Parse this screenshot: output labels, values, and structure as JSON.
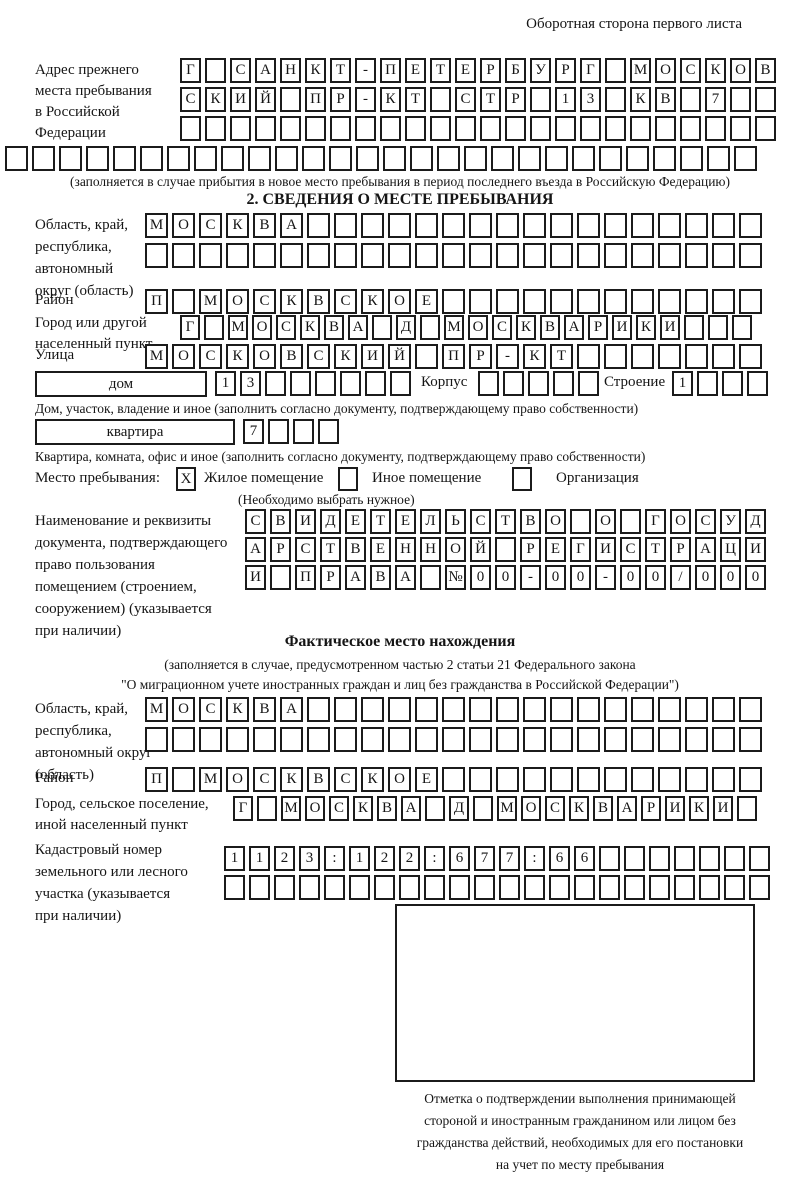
{
  "page": {
    "back_note": "Оборотная сторона первого листа"
  },
  "prev_address": {
    "label_lines": [
      "Адрес прежнего",
      "места пребывания",
      "в Российской",
      "Федерации"
    ],
    "row1": {
      "text": "Г САНКТ-ПЕТЕРБУРГ МОСКОВ",
      "len": 24
    },
    "row2": {
      "text": "СКИЙ ПР-КТ СТР 13 КВ 7",
      "len": 24
    },
    "row3": {
      "text": "",
      "len": 24
    },
    "row4": {
      "text": "",
      "len": 28
    },
    "note": "(заполняется в случае прибытия в новое место пребывания в период последнего въезда в Российскую Федерацию)"
  },
  "section2": {
    "title": "2. СВЕДЕНИЯ О МЕСТЕ ПРЕБЫВАНИЯ",
    "oblast": {
      "label_lines": [
        "Область, край,",
        "республика,",
        "автономный",
        "округ (область)"
      ],
      "row1": {
        "text": "МОСКВА",
        "len": 23
      },
      "row2": {
        "text": "",
        "len": 23
      }
    },
    "rayon": {
      "label": "Район",
      "row": {
        "text": "П МОСКВСКОЕ",
        "len": 23
      }
    },
    "gorod": {
      "label_lines": [
        "Город или другой",
        "населенный пункт"
      ],
      "row": {
        "text": "Г МОСКВА Д МОСКВАРИКИ",
        "len": 24
      }
    },
    "ulitsa": {
      "label": "Улица",
      "row": {
        "text": "МОСКОВСКИЙ ПР-КТ",
        "len": 23
      }
    },
    "dom": {
      "box_label": "дом",
      "house_cells": {
        "text": "13",
        "len": 8
      },
      "korpus_label": "Корпус",
      "korpus_cells": {
        "text": "",
        "len": 5
      },
      "stroenie_label": "Строение",
      "stroenie_cells": {
        "text": "1",
        "len": 4
      },
      "caption": "Дом, участок, владение и иное (заполнить согласно документу, подтверждающему право собственности)"
    },
    "kvartira": {
      "box_label": "квартира",
      "cells": {
        "text": "7",
        "len": 4
      },
      "caption": "Квартира, комната, офис и иное (заполнить согласно документу, подтверждающему право собственности)"
    },
    "mesto": {
      "label": "Место пребывания:",
      "options": [
        {
          "label": "Жилое помещение",
          "mark": "X"
        },
        {
          "label": "Иное помещение",
          "mark": ""
        },
        {
          "label": "Организация",
          "mark": ""
        }
      ],
      "note": "(Необходимо выбрать нужное)"
    },
    "document": {
      "label_lines": [
        "Наименование и реквизиты",
        "документа, подтверждающего",
        "право пользования",
        "помещением (строением,",
        "сооружением) (указывается",
        "при наличии)"
      ],
      "row1": {
        "text": "СВИДЕТЕЛЬСТВО О ГОСУД",
        "len": 21
      },
      "row2": {
        "text": "АРСТВЕННОЙ РЕГИСТРАЦИ",
        "len": 21
      },
      "row3": {
        "text": "И ПРАВА №00-00-00/000",
        "len": 21
      }
    }
  },
  "section3": {
    "title": "Фактическое место нахождения",
    "note_lines": [
      "(заполняется в случае, предусмотренном частью 2 статьи 21 Федерального закона",
      "\"О миграционном учете иностранных граждан и лиц без гражданства в Российской Федерации\")"
    ],
    "oblast": {
      "label_lines": [
        "Область, край,",
        "республика,",
        "автономный округ",
        "(область)"
      ],
      "row1": {
        "text": "МОСКВА",
        "len": 23
      },
      "row2": {
        "text": "",
        "len": 23
      }
    },
    "rayon": {
      "label": "Район",
      "row": {
        "text": "П МОСКВСКОЕ",
        "len": 23
      }
    },
    "gorod": {
      "label_lines": [
        "Город, сельское поселение,",
        "иной населенный пункт"
      ],
      "row": {
        "text": "Г МОСКВА Д МОСКВАРИКИ",
        "len": 22
      }
    },
    "kadastr": {
      "label_lines": [
        "Кадастровый номер",
        "земельного или лесного",
        "участка (указывается",
        "при наличии)"
      ],
      "row1": {
        "text": "1123:122:677:66",
        "len": 22
      },
      "row2": {
        "text": "",
        "len": 22
      }
    },
    "stamp_caption_lines": [
      "Отметка о подтверждении выполнения принимающей",
      "стороной и иностранным гражданином или лицом без",
      "гражданства действий, необходимых для его постановки",
      "на учет по месту пребывания"
    ]
  }
}
